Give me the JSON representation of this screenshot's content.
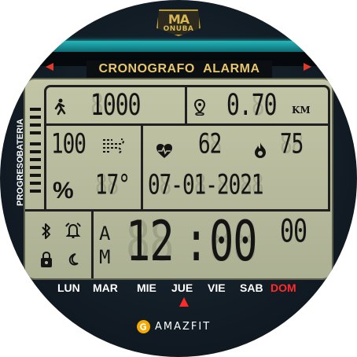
{
  "logo": {
    "top": "MA",
    "bottom": "ONUBA"
  },
  "title": "CRONOGRAFO ALARMA",
  "side": {
    "bateria_label": "BATERIA",
    "progreso_label": "PROGRESO"
  },
  "steps": {
    "value": "1000",
    "ghost": "8888",
    "icon": "walking-person-icon"
  },
  "distance": {
    "value": "0.70",
    "ghost": "8.88",
    "unit": "KM",
    "icon": "location-pin-icon"
  },
  "battery": {
    "value": "100",
    "ghost": "188",
    "unit": "%"
  },
  "weather": {
    "icon": "wind-icon",
    "value": "17°",
    "ghost": "88"
  },
  "heart": {
    "icon": "heart-icon",
    "value": "62",
    "ghost": "88"
  },
  "calories": {
    "icon": "flame-icon",
    "value": "75",
    "ghost": "88"
  },
  "date": {
    "value": "07-01-2021",
    "ghost": "88-88-8888"
  },
  "status_icons": [
    "bluetooth-icon",
    "alarm-bell-icon",
    "lock-icon",
    "moon-icon"
  ],
  "time": {
    "ampm_top": "A",
    "ampm_bottom": "M",
    "hours": "12",
    "colon": ":",
    "minutes": "00",
    "seconds": "00",
    "ghost_hm": "88",
    "ghost_sec": "88"
  },
  "days": {
    "mon": "LUN",
    "tue": "MAR",
    "wed": "MIE",
    "thu": "JUE",
    "fri": "VIE",
    "sat": "SAB",
    "sun": "DOM",
    "current": "JUE"
  },
  "brand": "AMAZFIT",
  "colors": {
    "lcd": "#b9bd9f",
    "accent_red": "#ff2a2a",
    "teal": "#1cb3b8",
    "gold": "#e7c66c"
  }
}
